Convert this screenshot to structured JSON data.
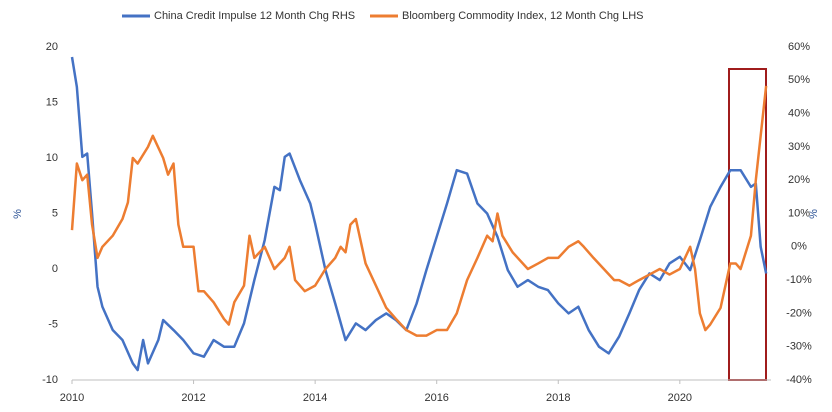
{
  "chart_data": {
    "type": "line",
    "ylabel": "%",
    "y2label": "%",
    "xlim": [
      2010,
      2021.5
    ],
    "xticks": [
      2010,
      2012,
      2014,
      2016,
      2018,
      2020
    ],
    "ylim": [
      -10,
      20
    ],
    "yticks": [
      -10,
      -5,
      0,
      5,
      10,
      15,
      20
    ],
    "y2lim": [
      -40,
      60
    ],
    "y2ticks": [
      {
        "value": -40,
        "label": "-40%"
      },
      {
        "value": -30,
        "label": "-30%"
      },
      {
        "value": -20,
        "label": "-20%"
      },
      {
        "value": -10,
        "label": "-10%"
      },
      {
        "value": 0,
        "label": "0%"
      },
      {
        "value": 10,
        "label": "10%"
      },
      {
        "value": 20,
        "label": "20%"
      },
      {
        "value": 30,
        "label": "30%"
      },
      {
        "value": 40,
        "label": "40%"
      },
      {
        "value": 50,
        "label": "50%"
      },
      {
        "value": 60,
        "label": "60%"
      }
    ],
    "grid": false,
    "legend": "top",
    "series": [
      {
        "name": "China Credit Impulse 12 Month Chg RHS",
        "color": "#4472c4",
        "axis": "y2",
        "x": [
          2010.0,
          2010.08,
          2010.17,
          2010.25,
          2010.33,
          2010.42,
          2010.5,
          2010.67,
          2010.83,
          2011.0,
          2011.08,
          2011.17,
          2011.25,
          2011.42,
          2011.5,
          2011.67,
          2011.83,
          2012.0,
          2012.17,
          2012.33,
          2012.5,
          2012.67,
          2012.83,
          2013.0,
          2013.17,
          2013.33,
          2013.42,
          2013.5,
          2013.58,
          2013.75,
          2013.92,
          2014.0,
          2014.17,
          2014.33,
          2014.5,
          2014.67,
          2014.83,
          2015.0,
          2015.17,
          2015.33,
          2015.5,
          2015.67,
          2015.83,
          2016.0,
          2016.17,
          2016.33,
          2016.5,
          2016.67,
          2016.83,
          2017.0,
          2017.17,
          2017.33,
          2017.5,
          2017.67,
          2017.83,
          2018.0,
          2018.17,
          2018.33,
          2018.5,
          2018.67,
          2018.83,
          2019.0,
          2019.17,
          2019.33,
          2019.5,
          2019.67,
          2019.83,
          2020.0,
          2020.17,
          2020.33,
          2020.5,
          2020.67,
          2020.83,
          2021.0,
          2021.17,
          2021.25,
          2021.33,
          2021.42
        ],
        "values": [
          57,
          48,
          27,
          28,
          10,
          -12,
          -18,
          -25,
          -28,
          -35,
          -37,
          -28,
          -35,
          -28,
          -22,
          -25,
          -28,
          -32,
          -33,
          -28,
          -30,
          -30,
          -23,
          -10,
          2,
          18,
          17,
          27,
          28,
          20,
          13,
          7,
          -7,
          -17,
          -28,
          -23,
          -25,
          -22,
          -20,
          -22,
          -25,
          -17,
          -7,
          3,
          13,
          23,
          22,
          13,
          10,
          3,
          -7,
          -12,
          -10,
          -12,
          -13,
          -17,
          -20,
          -18,
          -25,
          -30,
          -32,
          -27,
          -20,
          -13,
          -8,
          -10,
          -5,
          -3,
          -7,
          2,
          12,
          18,
          23,
          23,
          18,
          19,
          0,
          -8
        ]
      },
      {
        "name": "Bloomberg Commodity Index, 12 Month Chg LHS",
        "color": "#ed7d31",
        "x": [
          2010.0,
          2010.08,
          2010.17,
          2010.25,
          2010.33,
          2010.42,
          2010.5,
          2010.67,
          2010.83,
          2010.92,
          2011.0,
          2011.08,
          2011.25,
          2011.33,
          2011.5,
          2011.58,
          2011.67,
          2011.75,
          2011.83,
          2012.0,
          2012.08,
          2012.17,
          2012.33,
          2012.5,
          2012.58,
          2012.67,
          2012.83,
          2012.92,
          2013.0,
          2013.17,
          2013.33,
          2013.5,
          2013.58,
          2013.67,
          2013.83,
          2014.0,
          2014.17,
          2014.33,
          2014.42,
          2014.5,
          2014.58,
          2014.67,
          2014.83,
          2015.0,
          2015.17,
          2015.33,
          2015.5,
          2015.67,
          2015.83,
          2016.0,
          2016.17,
          2016.33,
          2016.5,
          2016.67,
          2016.83,
          2016.92,
          2017.0,
          2017.08,
          2017.25,
          2017.5,
          2017.67,
          2017.83,
          2018.0,
          2018.17,
          2018.33,
          2018.42,
          2018.58,
          2018.75,
          2018.92,
          2019.0,
          2019.17,
          2019.33,
          2019.5,
          2019.67,
          2019.83,
          2020.0,
          2020.17,
          2020.25,
          2020.33,
          2020.42,
          2020.5,
          2020.67,
          2020.83,
          2020.92,
          2021.0,
          2021.17,
          2021.25,
          2021.33,
          2021.42
        ],
        "values": [
          3.5,
          9.5,
          8,
          8.5,
          4,
          1,
          2,
          3,
          4.5,
          6,
          10,
          9.5,
          11,
          12,
          10,
          8.5,
          9.5,
          4,
          2,
          2,
          -2,
          -2,
          -3,
          -4.5,
          -5,
          -3,
          -1.5,
          3,
          1,
          2,
          0,
          1,
          2,
          -1,
          -2,
          -1.5,
          0,
          1,
          2,
          1.5,
          4,
          4.5,
          0.5,
          -1.5,
          -3.5,
          -4.5,
          -5.5,
          -6,
          -6,
          -5.5,
          -5.5,
          -4,
          -1,
          1,
          3,
          2.5,
          5,
          3,
          1.5,
          0,
          0.5,
          1,
          1,
          2,
          2.5,
          2,
          1,
          0,
          -1,
          -1,
          -1.5,
          -1,
          -0.5,
          0,
          -0.5,
          0,
          2,
          0,
          -4,
          -5.5,
          -5,
          -3.5,
          0.5,
          0.5,
          0,
          3,
          8,
          12,
          16.5
        ]
      }
    ]
  }
}
